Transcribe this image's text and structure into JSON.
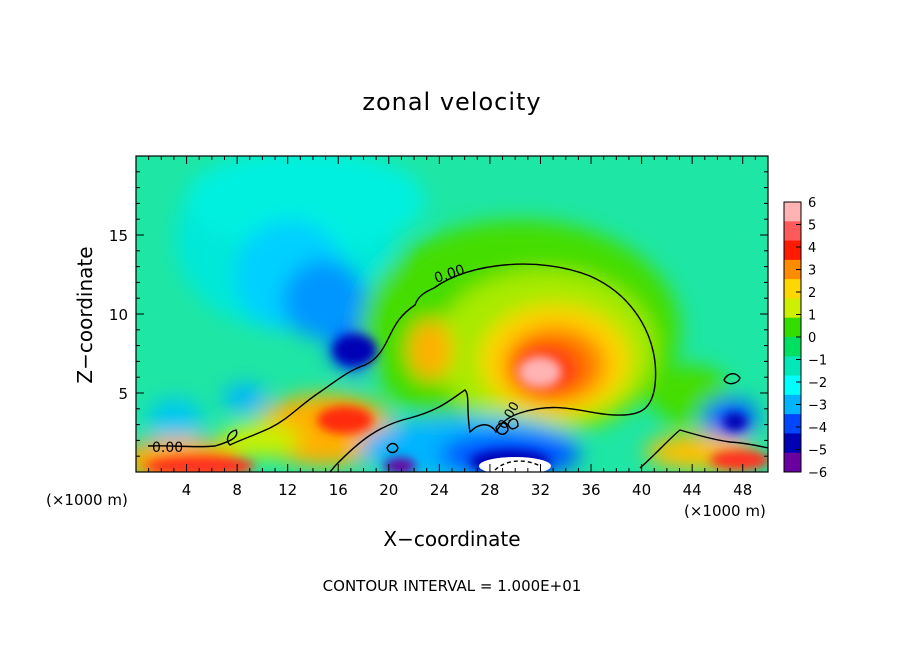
{
  "chart_data": {
    "type": "heatmap",
    "title": "zonal velocity",
    "xlabel": "X−coordinate",
    "ylabel": "Z−coordinate",
    "x_unit_label": "(×1000 m)",
    "footer": "CONTOUR INTERVAL = 1.000E+01",
    "xlim": [
      0,
      50
    ],
    "ylim": [
      0,
      20
    ],
    "x_ticks": [
      4,
      8,
      12,
      16,
      20,
      24,
      28,
      32,
      36,
      40,
      44,
      48
    ],
    "y_ticks": [
      5,
      10,
      15
    ],
    "colorbar": {
      "range": [
        -6,
        6
      ],
      "tick_labels": [
        "6",
        "5",
        "4",
        "3",
        "2",
        "1",
        "0",
        "−1",
        "−2",
        "−3",
        "−4",
        "−5",
        "−6"
      ],
      "colors": [
        "#ffb3b3",
        "#ff5a5a",
        "#ff1a00",
        "#ff8c00",
        "#ffd700",
        "#ccf000",
        "#33dd00",
        "#00e060",
        "#00e8b8",
        "#00ffff",
        "#00b4ff",
        "#0046ff",
        "#0000b4",
        "#6a00a0"
      ]
    },
    "contour_labels": [
      "0.00",
      "0.00",
      "0.00"
    ],
    "features": [
      {
        "name": "positive max",
        "x": 33,
        "z": 7,
        "value": 6
      },
      {
        "name": "negative min (upper)",
        "x": 17.5,
        "z": 8,
        "value": -5
      },
      {
        "name": "negative min (surface)",
        "x": 31,
        "z": 1,
        "value": -6
      },
      {
        "name": "negative min (right)",
        "x": 46.5,
        "z": 3.3,
        "value": -4
      }
    ]
  }
}
